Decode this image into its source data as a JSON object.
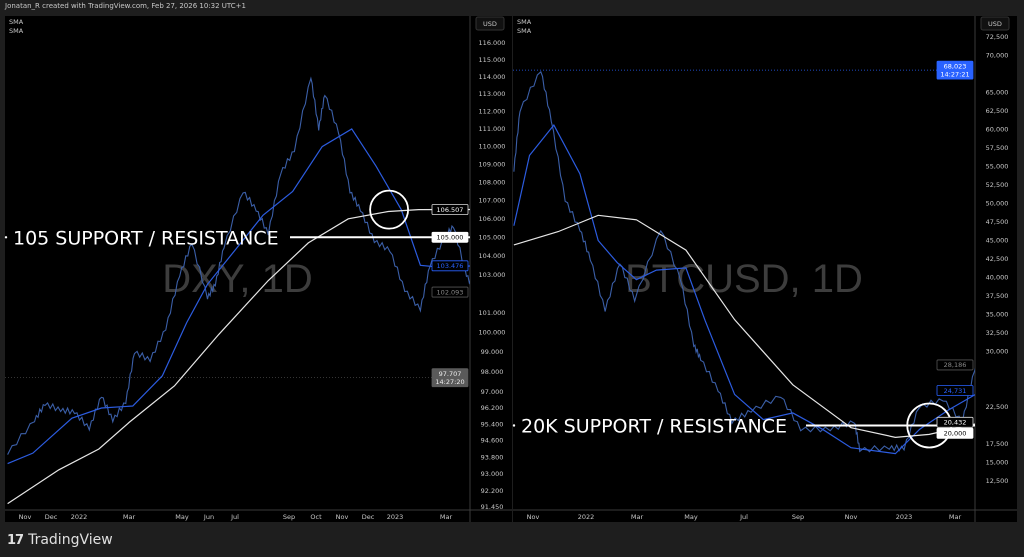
{
  "header": {
    "credit": "Jonatan_R created with TradingView.com, Feb 27, 2026 10:32 UTC+1"
  },
  "footer": {
    "brand": "TradingView",
    "brand_icon": "tradingview-logo-icon"
  },
  "colors": {
    "background": "#000000",
    "frame": "#1e1e1e",
    "price": "#3b5fa8",
    "sma_fast": "#2c5ce0",
    "sma_slow": "#e6e6e6",
    "annotation": "#ffffff",
    "watermark": "#3d3d3d",
    "last_price_blue": "#2962ff"
  },
  "chart_data": [
    {
      "type": "line",
      "symbol_watermark": "DXY, 1D",
      "currency": "USD",
      "legend": [
        "SMA",
        "SMA"
      ],
      "y_scale": "log",
      "ylim": [
        91.45,
        116.8
      ],
      "grid": false,
      "x_ticks": [
        "Nov",
        "Dec",
        "2022",
        "Mar",
        "May",
        "Jun",
        "Jul",
        "Sep",
        "Oct",
        "Nov",
        "Dec",
        "2023",
        "Mar"
      ],
      "y_ticks": [
        "116.000",
        "115.000",
        "114.000",
        "113.000",
        "112.000",
        "111.000",
        "110.000",
        "109.000",
        "108.000",
        "107.000",
        "106.000",
        "105.000",
        "104.000",
        "103.000",
        "101.000",
        "100.000",
        "99.000",
        "98.000",
        "97.000",
        "96.200",
        "95.400",
        "94.600",
        "93.800",
        "93.000",
        "92.200",
        "91.450"
      ],
      "series": [
        {
          "role": "price",
          "points": [
            [
              "2021-10-12",
              94.0
            ],
            [
              "2021-11-12",
              95.6
            ],
            [
              "2021-11-24",
              96.4
            ],
            [
              "2021-12-12",
              96.1
            ],
            [
              "2021-12-28",
              96.0
            ],
            [
              "2022-01-14",
              95.2
            ],
            [
              "2022-01-28",
              96.8
            ],
            [
              "2022-02-10",
              95.6
            ],
            [
              "2022-02-25",
              96.5
            ],
            [
              "2022-03-07",
              99.0
            ],
            [
              "2022-03-25",
              98.6
            ],
            [
              "2022-04-12",
              100.2
            ],
            [
              "2022-04-28",
              103.0
            ],
            [
              "2022-05-12",
              104.7
            ],
            [
              "2022-05-30",
              101.8
            ],
            [
              "2022-06-08",
              102.5
            ],
            [
              "2022-06-18",
              104.5
            ],
            [
              "2022-07-10",
              107.5
            ],
            [
              "2022-07-25",
              106.5
            ],
            [
              "2022-08-08",
              105.2
            ],
            [
              "2022-08-22",
              108.5
            ],
            [
              "2022-09-07",
              109.8
            ],
            [
              "2022-09-26",
              114.0
            ],
            [
              "2022-10-05",
              111.0
            ],
            [
              "2022-10-12",
              113.0
            ],
            [
              "2022-10-28",
              110.8
            ],
            [
              "2022-11-10",
              107.5
            ],
            [
              "2022-11-22",
              106.5
            ],
            [
              "2022-12-08",
              104.8
            ],
            [
              "2022-12-26",
              104.3
            ],
            [
              "2023-01-12",
              102.2
            ],
            [
              "2023-01-30",
              101.2
            ],
            [
              "2023-02-10",
              103.5
            ],
            [
              "2023-02-27",
              105.0
            ],
            [
              "2023-03-09",
              105.6
            ],
            [
              "2023-03-24",
              103.0
            ],
            [
              "2023-04-03",
              102.1
            ]
          ]
        },
        {
          "role": "sma_fast",
          "points": [
            [
              "2021-10-12",
              93.5
            ],
            [
              "2021-11-10",
              94.0
            ],
            [
              "2021-12-25",
              95.7
            ],
            [
              "2022-01-28",
              96.2
            ],
            [
              "2022-03-05",
              96.3
            ],
            [
              "2022-04-08",
              97.8
            ],
            [
              "2022-05-06",
              100.5
            ],
            [
              "2022-05-30",
              102.5
            ],
            [
              "2022-07-04",
              104.5
            ],
            [
              "2022-08-02",
              106.2
            ],
            [
              "2022-09-05",
              107.5
            ],
            [
              "2022-10-09",
              110.0
            ],
            [
              "2022-11-12",
              111.0
            ],
            [
              "2022-12-10",
              108.9
            ],
            [
              "2023-01-08",
              106.5
            ],
            [
              "2023-01-30",
              103.5
            ],
            [
              "2023-02-22",
              103.4
            ],
            [
              "2023-04-03",
              103.476
            ]
          ]
        },
        {
          "role": "sma_slow",
          "points": [
            [
              "2021-10-12",
              91.6
            ],
            [
              "2021-12-10",
              93.2
            ],
            [
              "2022-01-25",
              94.2
            ],
            [
              "2022-03-01",
              95.5
            ],
            [
              "2022-04-22",
              97.3
            ],
            [
              "2022-06-12",
              99.9
            ],
            [
              "2022-08-08",
              102.7
            ],
            [
              "2022-09-23",
              104.7
            ],
            [
              "2022-11-08",
              106.0
            ],
            [
              "2022-12-24",
              106.4
            ],
            [
              "2023-01-28",
              106.5
            ],
            [
              "2023-04-03",
              106.507
            ]
          ]
        }
      ],
      "price_labels": [
        {
          "value": "106.507",
          "style": "sma_slow"
        },
        {
          "value": "105.000",
          "style": "level"
        },
        {
          "value": "103.476",
          "style": "sma_fast"
        },
        {
          "value": "102.093",
          "style": "close"
        },
        {
          "value": "97.707",
          "time": "14:27:20",
          "style": "live"
        }
      ],
      "annotation": {
        "text": "105 SUPPORT / RESISTANCE",
        "level": 105.0,
        "circle_at": [
          "2022-12-25",
          106.5
        ]
      }
    },
    {
      "type": "line",
      "symbol_watermark": "BTCUSD, 1D",
      "currency": "USD",
      "legend": [
        "SMA",
        "SMA"
      ],
      "y_scale": "linear",
      "ylim": [
        10500,
        74500
      ],
      "grid": false,
      "x_ticks": [
        "Nov",
        "2022",
        "Mar",
        "May",
        "Jul",
        "Sep",
        "Nov",
        "2023",
        "Mar"
      ],
      "y_ticks": [
        "72,500",
        "70,000",
        "65,000",
        "62,500",
        "60,000",
        "57,500",
        "55,000",
        "52,500",
        "50,000",
        "47,500",
        "45,000",
        "42,500",
        "40,000",
        "37,500",
        "35,000",
        "32,500",
        "30,000",
        "22,500",
        "17,500",
        "15,000",
        "12,500"
      ],
      "series": [
        {
          "role": "price",
          "points": [
            [
              "2021-10-10",
              54500
            ],
            [
              "2021-10-17",
              62600
            ],
            [
              "2021-11-10",
              68000
            ],
            [
              "2021-11-22",
              61300
            ],
            [
              "2021-12-08",
              50500
            ],
            [
              "2021-12-25",
              46500
            ],
            [
              "2022-01-06",
              42500
            ],
            [
              "2022-01-23",
              35600
            ],
            [
              "2022-02-09",
              42000
            ],
            [
              "2022-02-26",
              37000
            ],
            [
              "2022-03-28",
              46500
            ],
            [
              "2022-04-20",
              39700
            ],
            [
              "2022-05-05",
              30900
            ],
            [
              "2022-05-13",
              29000
            ],
            [
              "2022-06-02",
              24800
            ],
            [
              "2022-06-18",
              20500
            ],
            [
              "2022-07-10",
              22000
            ],
            [
              "2022-08-13",
              24000
            ],
            [
              "2022-09-05",
              19500
            ],
            [
              "2022-10-09",
              19500
            ],
            [
              "2022-11-06",
              20500
            ],
            [
              "2022-11-12",
              16700
            ],
            [
              "2022-12-16",
              17000
            ],
            [
              "2023-01-02",
              16900
            ],
            [
              "2023-01-19",
              22500
            ],
            [
              "2023-02-16",
              23500
            ],
            [
              "2023-03-10",
              20500
            ],
            [
              "2023-03-24",
              27500
            ],
            [
              "2023-04-02",
              28186
            ]
          ]
        },
        {
          "role": "sma_fast",
          "points": [
            [
              "2021-10-10",
              47000
            ],
            [
              "2021-10-28",
              56500
            ],
            [
              "2021-11-25",
              60600
            ],
            [
              "2021-12-25",
              54000
            ],
            [
              "2022-01-15",
              45000
            ],
            [
              "2022-02-06",
              42000
            ],
            [
              "2022-02-28",
              39700
            ],
            [
              "2022-03-23",
              41000
            ],
            [
              "2022-04-26",
              41300
            ],
            [
              "2022-05-18",
              34200
            ],
            [
              "2022-06-21",
              24200
            ],
            [
              "2022-07-24",
              20800
            ],
            [
              "2022-08-27",
              21700
            ],
            [
              "2022-09-30",
              19500
            ],
            [
              "2022-11-02",
              17000
            ],
            [
              "2022-12-23",
              16200
            ],
            [
              "2023-01-20",
              19500
            ],
            [
              "2023-02-22",
              22100
            ],
            [
              "2023-04-02",
              24731
            ]
          ]
        },
        {
          "role": "sma_slow",
          "points": [
            [
              "2021-10-10",
              44400
            ],
            [
              "2021-11-30",
              46200
            ],
            [
              "2022-01-15",
              48400
            ],
            [
              "2022-02-28",
              47800
            ],
            [
              "2022-04-26",
              43700
            ],
            [
              "2022-06-21",
              34300
            ],
            [
              "2022-08-27",
              25500
            ],
            [
              "2022-11-02",
              19700
            ],
            [
              "2022-12-23",
              18400
            ],
            [
              "2023-01-31",
              18800
            ],
            [
              "2023-04-02",
              20432
            ]
          ]
        }
      ],
      "price_labels": [
        {
          "value": "68,023",
          "time": "14:27:21",
          "style": "live_blue"
        },
        {
          "value": "28,186",
          "style": "close"
        },
        {
          "value": "24,731",
          "style": "sma_fast"
        },
        {
          "value": "20,432",
          "style": "sma_slow"
        },
        {
          "value": "20,000",
          "style": "level"
        }
      ],
      "annotation": {
        "text": "20K SUPPORT / RESISTANCE",
        "level": 20000,
        "circle_at": [
          "2023-01-31",
          20000
        ]
      }
    }
  ]
}
